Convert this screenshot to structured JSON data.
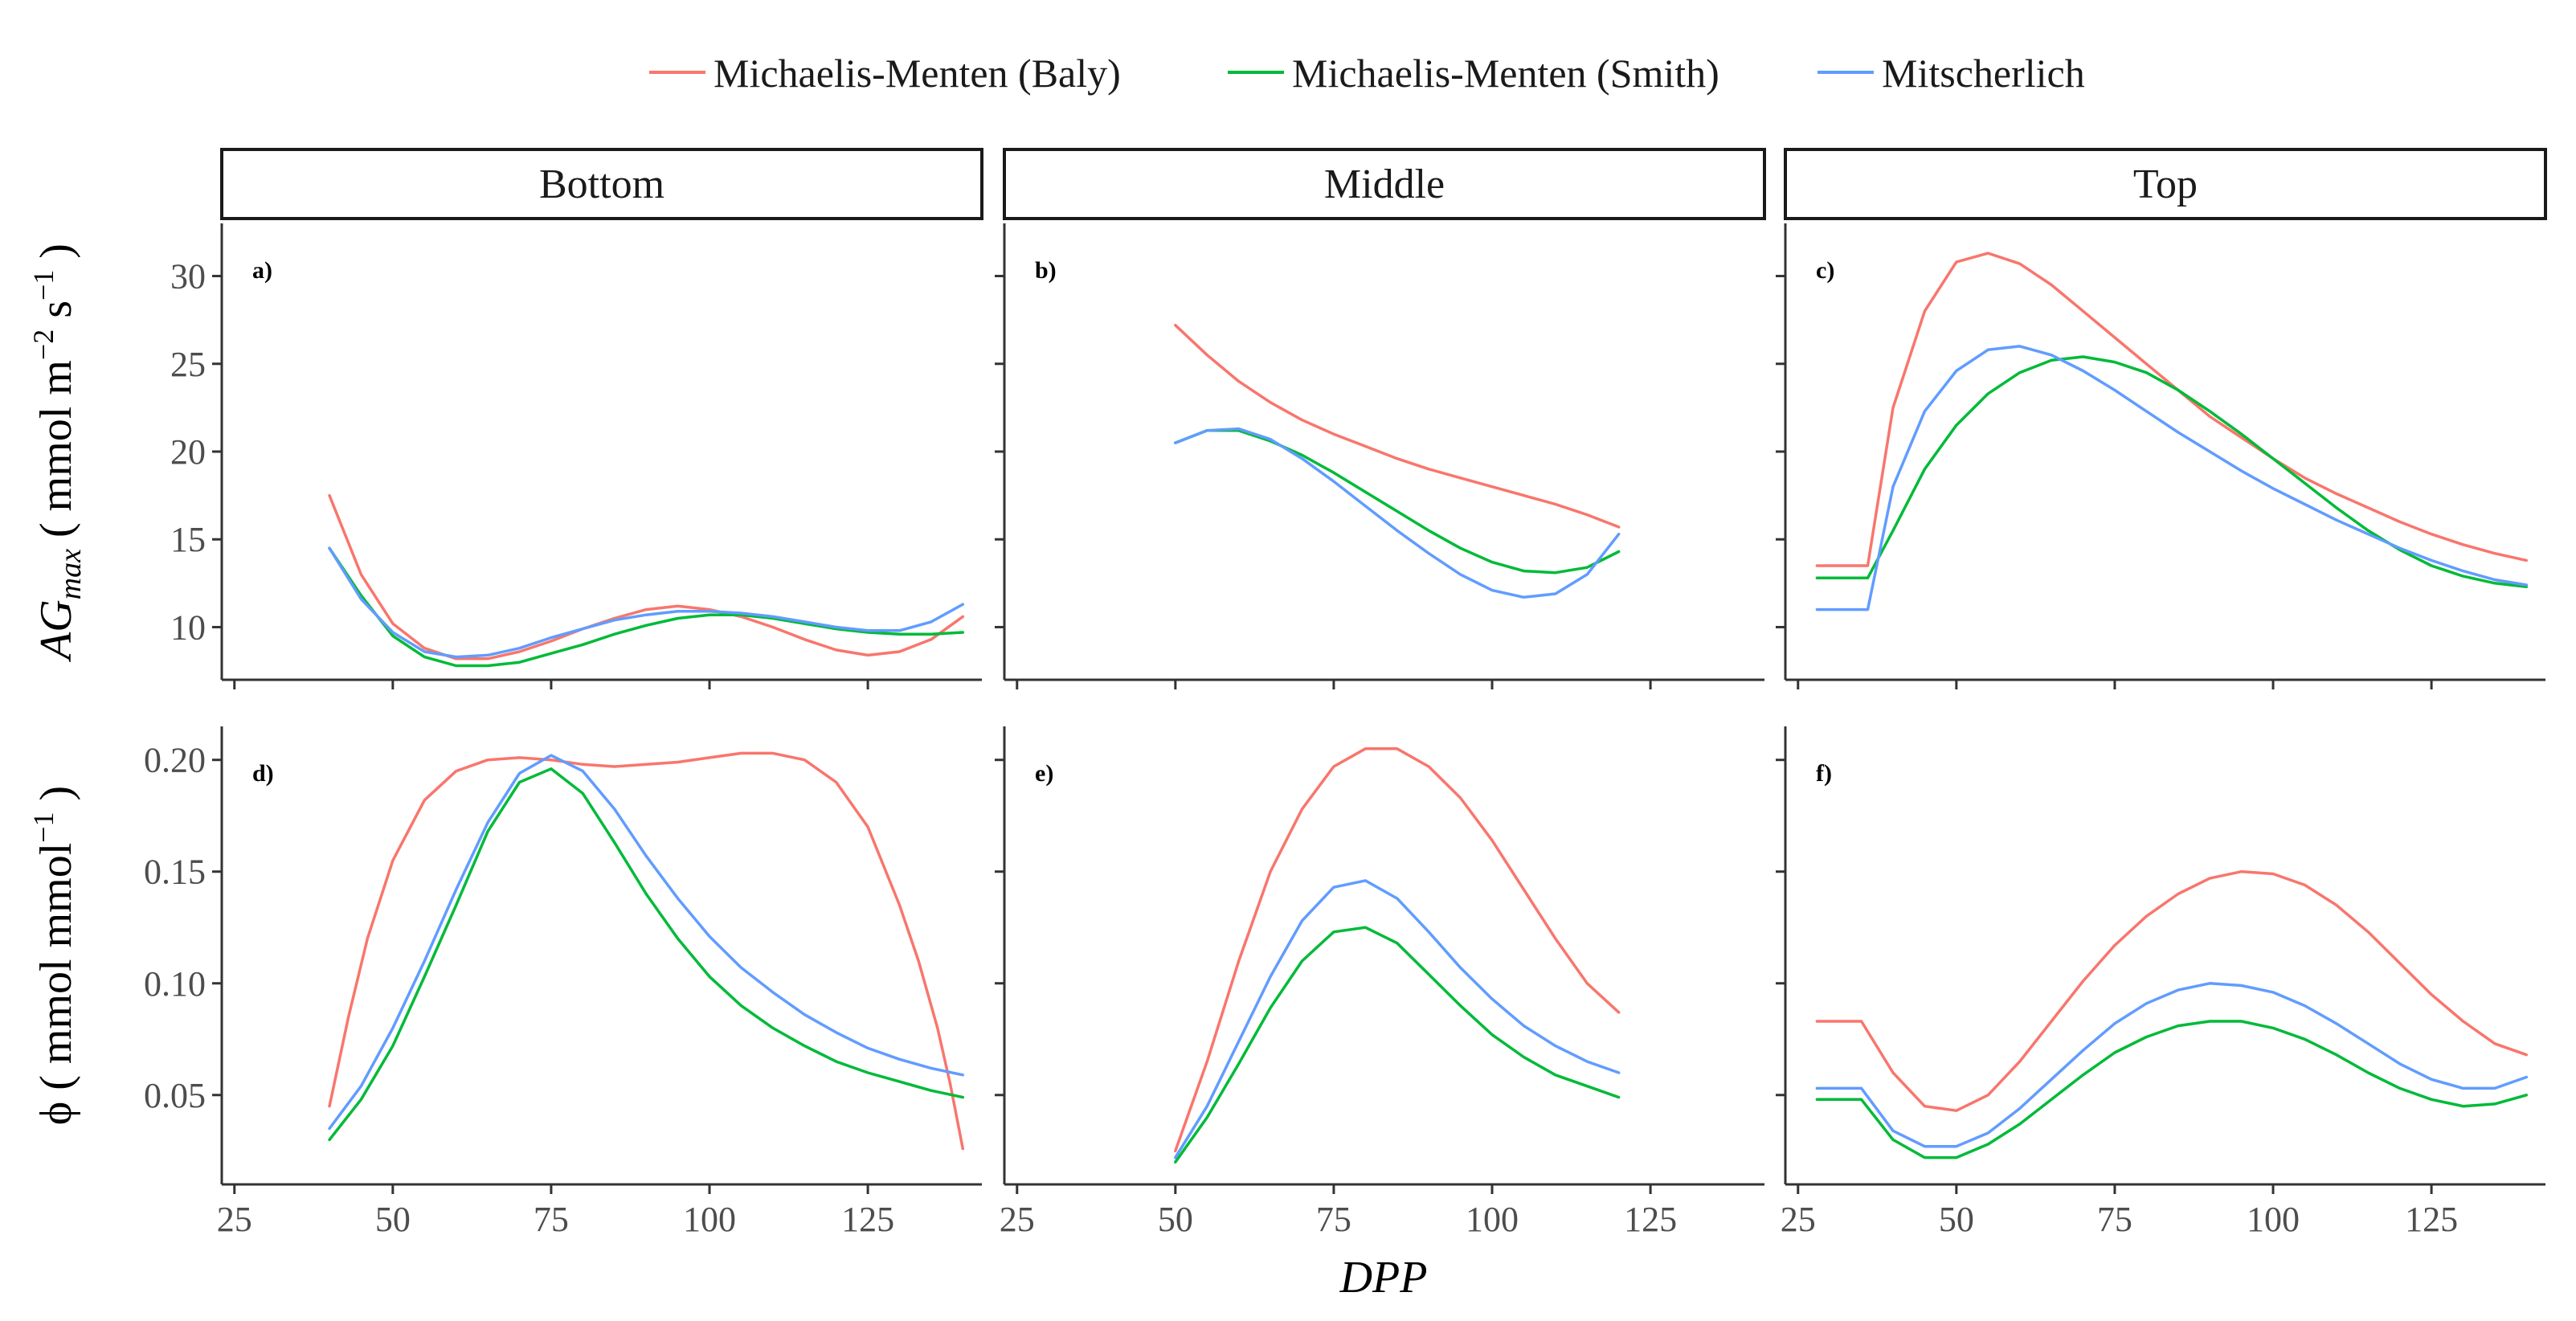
{
  "chart_data": {
    "type": "line",
    "legend": {
      "position": "top",
      "entries": [
        {
          "name": "Michaelis-Menten (Baly)",
          "color": "#F8766D"
        },
        {
          "name": "Michaelis-Menten (Smith)",
          "color": "#00BA38"
        },
        {
          "name": "Mitscherlich",
          "color": "#619CFF"
        }
      ]
    },
    "facet_columns": [
      "Bottom",
      "Middle",
      "Top"
    ],
    "xlabel": "DPP",
    "x_ticks": [
      25,
      50,
      75,
      100,
      125
    ],
    "x_range": [
      23,
      143
    ],
    "rows": [
      {
        "ylabel_prefix": "AG",
        "ylabel_subscript": "max",
        "ylabel_unit": "( mmol m",
        "ylabel_exp1": "−2",
        "ylabel_mid": " s",
        "ylabel_exp2": "−1",
        "ylabel_close": ")",
        "y_range": [
          7,
          33
        ],
        "y_ticks": [
          10,
          15,
          20,
          25,
          30
        ],
        "y_tick_labels": [
          "10",
          "15",
          "20",
          "25",
          "30"
        ]
      },
      {
        "ylabel_main": "ϕ ( mmol mmol",
        "ylabel_exp": "−1",
        "ylabel_close": " )",
        "y_range": [
          0.01,
          0.215
        ],
        "y_ticks": [
          0.05,
          0.1,
          0.15,
          0.2
        ],
        "y_tick_labels": [
          "0.05",
          "0.10",
          "0.15",
          "0.20"
        ]
      }
    ],
    "panels": [
      {
        "tag": "a)",
        "row": 0,
        "col": 0,
        "series": [
          {
            "name": "Michaelis-Menten (Baly)",
            "x": [
              40,
              45,
              50,
              55,
              60,
              65,
              70,
              75,
              80,
              85,
              90,
              95,
              100,
              105,
              110,
              115,
              120,
              125,
              130,
              135,
              140
            ],
            "y": [
              17.5,
              13.0,
              10.2,
              8.8,
              8.2,
              8.2,
              8.6,
              9.2,
              9.9,
              10.5,
              11.0,
              11.2,
              11.0,
              10.6,
              10.0,
              9.3,
              8.7,
              8.4,
              8.6,
              9.3,
              10.6
            ]
          },
          {
            "name": "Michaelis-Menten (Smith)",
            "x": [
              40,
              45,
              50,
              55,
              60,
              65,
              70,
              75,
              80,
              85,
              90,
              95,
              100,
              105,
              110,
              115,
              120,
              125,
              130,
              135,
              140
            ],
            "y": [
              14.5,
              11.8,
              9.5,
              8.3,
              7.8,
              7.8,
              8.0,
              8.5,
              9.0,
              9.6,
              10.1,
              10.5,
              10.7,
              10.7,
              10.5,
              10.2,
              9.9,
              9.7,
              9.6,
              9.6,
              9.7
            ]
          },
          {
            "name": "Mitscherlich",
            "x": [
              40,
              45,
              50,
              55,
              60,
              65,
              70,
              75,
              80,
              85,
              90,
              95,
              100,
              105,
              110,
              115,
              120,
              125,
              130,
              135,
              140
            ],
            "y": [
              14.5,
              11.6,
              9.7,
              8.6,
              8.3,
              8.4,
              8.8,
              9.4,
              9.9,
              10.4,
              10.7,
              10.9,
              10.9,
              10.8,
              10.6,
              10.3,
              10.0,
              9.8,
              9.8,
              10.3,
              11.3
            ]
          }
        ]
      },
      {
        "tag": "b)",
        "row": 0,
        "col": 1,
        "series": [
          {
            "name": "Michaelis-Menten (Baly)",
            "x": [
              50,
              55,
              60,
              65,
              70,
              75,
              80,
              85,
              90,
              95,
              100,
              105,
              110,
              115,
              120
            ],
            "y": [
              27.2,
              25.5,
              24.0,
              22.8,
              21.8,
              21.0,
              20.3,
              19.6,
              19.0,
              18.5,
              18.0,
              17.5,
              17.0,
              16.4,
              15.7
            ]
          },
          {
            "name": "Michaelis-Menten (Smith)",
            "x": [
              50,
              55,
              60,
              65,
              70,
              75,
              80,
              85,
              90,
              95,
              100,
              105,
              110,
              115,
              120
            ],
            "y": [
              20.5,
              21.2,
              21.2,
              20.6,
              19.8,
              18.8,
              17.7,
              16.6,
              15.5,
              14.5,
              13.7,
              13.2,
              13.1,
              13.4,
              14.3
            ]
          },
          {
            "name": "Mitscherlich",
            "x": [
              50,
              55,
              60,
              65,
              70,
              75,
              80,
              85,
              90,
              95,
              100,
              105,
              110,
              115,
              120
            ],
            "y": [
              20.5,
              21.2,
              21.3,
              20.7,
              19.6,
              18.3,
              16.9,
              15.5,
              14.2,
              13.0,
              12.1,
              11.7,
              11.9,
              13.0,
              15.3
            ]
          }
        ]
      },
      {
        "tag": "c)",
        "row": 0,
        "col": 2,
        "series": [
          {
            "name": "Michaelis-Menten (Baly)",
            "x": [
              28,
              36,
              40,
              45,
              50,
              55,
              60,
              65,
              70,
              75,
              80,
              85,
              90,
              95,
              100,
              105,
              110,
              115,
              120,
              125,
              130,
              135,
              140
            ],
            "y": [
              13.5,
              13.5,
              22.5,
              28.0,
              30.8,
              31.3,
              30.7,
              29.5,
              28.0,
              26.5,
              25.0,
              23.5,
              22.0,
              20.8,
              19.6,
              18.5,
              17.6,
              16.8,
              16.0,
              15.3,
              14.7,
              14.2,
              13.8
            ]
          },
          {
            "name": "Michaelis-Menten (Smith)",
            "x": [
              28,
              36,
              40,
              45,
              50,
              55,
              60,
              65,
              70,
              75,
              80,
              85,
              90,
              95,
              100,
              105,
              110,
              115,
              120,
              125,
              130,
              135,
              140
            ],
            "y": [
              12.8,
              12.8,
              15.5,
              19.0,
              21.5,
              23.3,
              24.5,
              25.2,
              25.4,
              25.1,
              24.5,
              23.5,
              22.3,
              21.0,
              19.6,
              18.2,
              16.8,
              15.5,
              14.4,
              13.5,
              12.9,
              12.5,
              12.3
            ]
          },
          {
            "name": "Mitscherlich",
            "x": [
              28,
              36,
              40,
              45,
              50,
              55,
              60,
              65,
              70,
              75,
              80,
              85,
              90,
              95,
              100,
              105,
              110,
              115,
              120,
              125,
              130,
              135,
              140
            ],
            "y": [
              11.0,
              11.0,
              18.0,
              22.3,
              24.6,
              25.8,
              26.0,
              25.5,
              24.6,
              23.5,
              22.3,
              21.1,
              20.0,
              18.9,
              17.9,
              17.0,
              16.1,
              15.3,
              14.5,
              13.8,
              13.2,
              12.7,
              12.4
            ]
          }
        ]
      },
      {
        "tag": "d)",
        "row": 1,
        "col": 0,
        "series": [
          {
            "name": "Michaelis-Menten (Baly)",
            "x": [
              40,
              43,
              46,
              50,
              55,
              60,
              65,
              70,
              75,
              80,
              85,
              90,
              95,
              100,
              105,
              110,
              115,
              120,
              125,
              130,
              133,
              136,
              138,
              140
            ],
            "y": [
              0.045,
              0.085,
              0.12,
              0.155,
              0.182,
              0.195,
              0.2,
              0.201,
              0.2,
              0.198,
              0.197,
              0.198,
              0.199,
              0.201,
              0.203,
              0.203,
              0.2,
              0.19,
              0.17,
              0.135,
              0.11,
              0.08,
              0.055,
              0.026
            ]
          },
          {
            "name": "Michaelis-Menten (Smith)",
            "x": [
              40,
              45,
              50,
              55,
              60,
              65,
              70,
              75,
              80,
              85,
              90,
              95,
              100,
              105,
              110,
              115,
              120,
              125,
              130,
              135,
              140
            ],
            "y": [
              0.03,
              0.048,
              0.072,
              0.103,
              0.135,
              0.168,
              0.19,
              0.196,
              0.185,
              0.163,
              0.14,
              0.12,
              0.103,
              0.09,
              0.08,
              0.072,
              0.065,
              0.06,
              0.056,
              0.052,
              0.049
            ]
          },
          {
            "name": "Mitscherlich",
            "x": [
              40,
              45,
              50,
              55,
              60,
              65,
              70,
              75,
              80,
              85,
              90,
              95,
              100,
              105,
              110,
              115,
              120,
              125,
              130,
              135,
              140
            ],
            "y": [
              0.035,
              0.054,
              0.08,
              0.11,
              0.142,
              0.172,
              0.194,
              0.202,
              0.195,
              0.178,
              0.157,
              0.138,
              0.121,
              0.107,
              0.096,
              0.086,
              0.078,
              0.071,
              0.066,
              0.062,
              0.059
            ]
          }
        ]
      },
      {
        "tag": "e)",
        "row": 1,
        "col": 1,
        "series": [
          {
            "name": "Michaelis-Menten (Baly)",
            "x": [
              50,
              55,
              60,
              65,
              70,
              75,
              80,
              85,
              90,
              95,
              100,
              105,
              110,
              115,
              120
            ],
            "y": [
              0.025,
              0.065,
              0.11,
              0.15,
              0.178,
              0.197,
              0.205,
              0.205,
              0.197,
              0.183,
              0.164,
              0.142,
              0.12,
              0.1,
              0.087
            ]
          },
          {
            "name": "Michaelis-Menten (Smith)",
            "x": [
              50,
              55,
              60,
              65,
              70,
              75,
              80,
              85,
              90,
              95,
              100,
              105,
              110,
              115,
              120
            ],
            "y": [
              0.02,
              0.04,
              0.064,
              0.089,
              0.11,
              0.123,
              0.125,
              0.118,
              0.104,
              0.09,
              0.077,
              0.067,
              0.059,
              0.054,
              0.049
            ]
          },
          {
            "name": "Mitscherlich",
            "x": [
              50,
              55,
              60,
              65,
              70,
              75,
              80,
              85,
              90,
              95,
              100,
              105,
              110,
              115,
              120
            ],
            "y": [
              0.022,
              0.045,
              0.074,
              0.103,
              0.128,
              0.143,
              0.146,
              0.138,
              0.123,
              0.107,
              0.093,
              0.081,
              0.072,
              0.065,
              0.06
            ]
          }
        ]
      },
      {
        "tag": "f)",
        "row": 1,
        "col": 2,
        "series": [
          {
            "name": "Michaelis-Menten (Baly)",
            "x": [
              28,
              35,
              40,
              45,
              50,
              55,
              60,
              65,
              70,
              75,
              80,
              85,
              90,
              95,
              100,
              105,
              110,
              115,
              120,
              125,
              130,
              135,
              140
            ],
            "y": [
              0.083,
              0.083,
              0.06,
              0.045,
              0.043,
              0.05,
              0.065,
              0.083,
              0.101,
              0.117,
              0.13,
              0.14,
              0.147,
              0.15,
              0.149,
              0.144,
              0.135,
              0.123,
              0.109,
              0.095,
              0.083,
              0.073,
              0.068
            ]
          },
          {
            "name": "Michaelis-Menten (Smith)",
            "x": [
              28,
              35,
              40,
              45,
              50,
              55,
              60,
              65,
              70,
              75,
              80,
              85,
              90,
              95,
              100,
              105,
              110,
              115,
              120,
              125,
              130,
              135,
              140
            ],
            "y": [
              0.048,
              0.048,
              0.03,
              0.022,
              0.022,
              0.028,
              0.037,
              0.048,
              0.059,
              0.069,
              0.076,
              0.081,
              0.083,
              0.083,
              0.08,
              0.075,
              0.068,
              0.06,
              0.053,
              0.048,
              0.045,
              0.046,
              0.05
            ]
          },
          {
            "name": "Mitscherlich",
            "x": [
              28,
              35,
              40,
              45,
              50,
              55,
              60,
              65,
              70,
              75,
              80,
              85,
              90,
              95,
              100,
              105,
              110,
              115,
              120,
              125,
              130,
              135,
              140
            ],
            "y": [
              0.053,
              0.053,
              0.034,
              0.027,
              0.027,
              0.033,
              0.044,
              0.057,
              0.07,
              0.082,
              0.091,
              0.097,
              0.1,
              0.099,
              0.096,
              0.09,
              0.082,
              0.073,
              0.064,
              0.057,
              0.053,
              0.053,
              0.058
            ]
          }
        ]
      }
    ]
  }
}
